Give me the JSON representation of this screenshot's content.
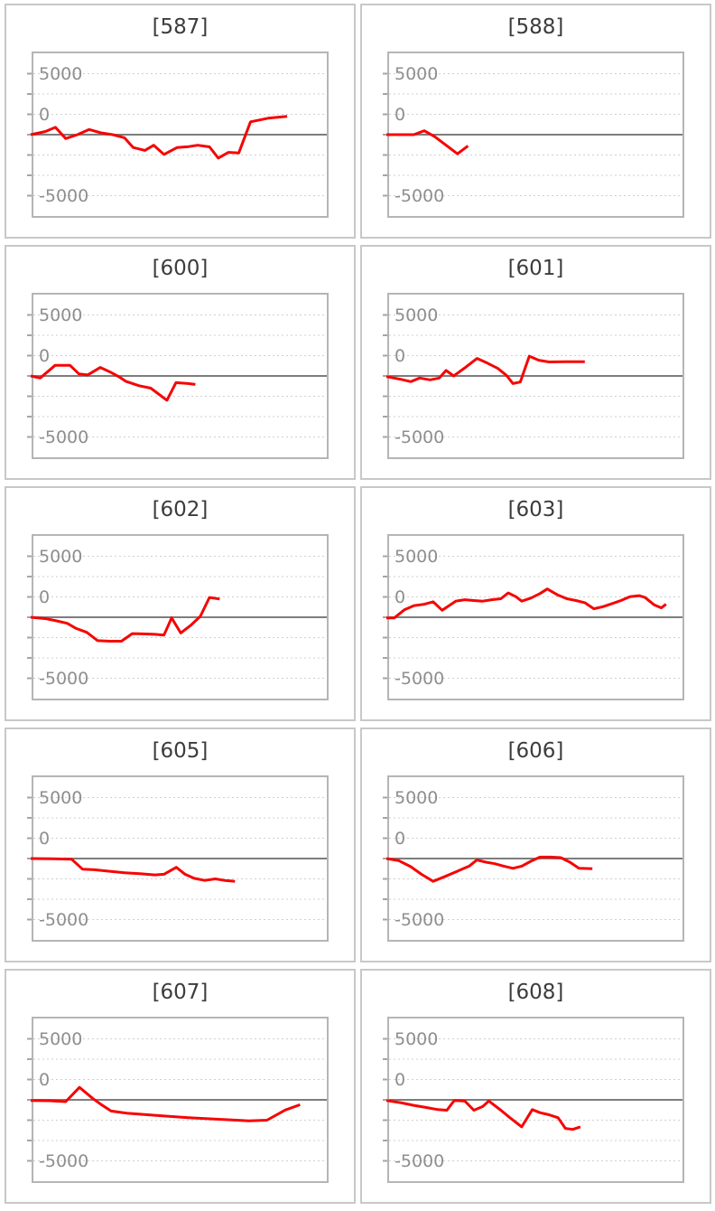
{
  "page": {
    "background": "#ffffff",
    "description_note": ""
  },
  "chart_defaults": {
    "type": "line",
    "grid": "dotted",
    "legend": "none",
    "y_axis": {
      "tick_labels": [
        "5000",
        "0",
        "-5000"
      ],
      "labeled_values": [
        5000,
        0,
        -5000
      ],
      "gridline_values": [
        5000,
        3333,
        1667,
        0,
        -1667,
        -3333,
        -5000
      ],
      "ylim": [
        -6667,
        6667
      ],
      "zero_line": "solid"
    },
    "x_axis": {
      "tick_labels": [],
      "range": [
        0,
        1
      ]
    },
    "colors": {
      "series": "#f60404",
      "zero_line": "#7d7d7d",
      "gridline": "#cfcfcf",
      "tick_mark": "#a5a5a5",
      "plot_border": "#b5b5b5",
      "panel_border": "#c8c8c8",
      "title_text": "#3c3c3c",
      "axis_label_text": "#8e8e8e"
    }
  },
  "chart_data": [
    {
      "title": "[587]",
      "series": [
        {
          "name": "series-red",
          "points": [
            [
              0,
              0
            ],
            [
              0.04,
              250
            ],
            [
              0.075,
              600
            ],
            [
              0.11,
              -320
            ],
            [
              0.15,
              0
            ],
            [
              0.19,
              420
            ],
            [
              0.23,
              150
            ],
            [
              0.27,
              0
            ],
            [
              0.31,
              -250
            ],
            [
              0.34,
              -1050
            ],
            [
              0.38,
              -1290
            ],
            [
              0.41,
              -870
            ],
            [
              0.445,
              -1620
            ],
            [
              0.49,
              -1050
            ],
            [
              0.53,
              -980
            ],
            [
              0.56,
              -870
            ],
            [
              0.6,
              -1000
            ],
            [
              0.63,
              -1920
            ],
            [
              0.665,
              -1450
            ],
            [
              0.7,
              -1500
            ],
            [
              0.74,
              1050
            ],
            [
              0.8,
              1350
            ],
            [
              0.865,
              1500
            ]
          ]
        }
      ]
    },
    {
      "title": "[588]",
      "series": [
        {
          "name": "series-red",
          "points": [
            [
              0,
              0
            ],
            [
              0.084,
              0
            ],
            [
              0.12,
              320
            ],
            [
              0.156,
              -170
            ],
            [
              0.233,
              -1570
            ],
            [
              0.269,
              -920
            ]
          ]
        }
      ]
    },
    {
      "title": "[600]",
      "series": [
        {
          "name": "series-red",
          "points": [
            [
              0,
              0
            ],
            [
              0.023,
              -170
            ],
            [
              0.074,
              870
            ],
            [
              0.125,
              870
            ],
            [
              0.155,
              170
            ],
            [
              0.185,
              80
            ],
            [
              0.228,
              700
            ],
            [
              0.264,
              300
            ],
            [
              0.295,
              -120
            ],
            [
              0.316,
              -450
            ],
            [
              0.36,
              -800
            ],
            [
              0.4,
              -1000
            ],
            [
              0.455,
              -1990
            ],
            [
              0.486,
              -550
            ],
            [
              0.527,
              -620
            ],
            [
              0.552,
              -700
            ]
          ]
        }
      ]
    },
    {
      "title": "[601]",
      "series": [
        {
          "name": "series-red",
          "points": [
            [
              0,
              -50
            ],
            [
              0.038,
              -270
            ],
            [
              0.074,
              -470
            ],
            [
              0.104,
              -170
            ],
            [
              0.14,
              -320
            ],
            [
              0.171,
              -170
            ],
            [
              0.194,
              450
            ],
            [
              0.22,
              0
            ],
            [
              0.26,
              700
            ],
            [
              0.3,
              1440
            ],
            [
              0.335,
              1050
            ],
            [
              0.37,
              620
            ],
            [
              0.4,
              50
            ],
            [
              0.422,
              -620
            ],
            [
              0.447,
              -500
            ],
            [
              0.478,
              1620
            ],
            [
              0.51,
              1290
            ],
            [
              0.545,
              1150
            ],
            [
              0.6,
              1160
            ],
            [
              0.667,
              1170
            ]
          ]
        }
      ]
    },
    {
      "title": "[602]",
      "series": [
        {
          "name": "series-red",
          "points": [
            [
              0,
              0
            ],
            [
              0.043,
              -120
            ],
            [
              0.079,
              -300
            ],
            [
              0.115,
              -500
            ],
            [
              0.146,
              -920
            ],
            [
              0.182,
              -1240
            ],
            [
              0.219,
              -1920
            ],
            [
              0.26,
              -1965
            ],
            [
              0.3,
              -1965
            ],
            [
              0.337,
              -1340
            ],
            [
              0.373,
              -1360
            ],
            [
              0.414,
              -1400
            ],
            [
              0.445,
              -1470
            ],
            [
              0.471,
              -50
            ],
            [
              0.502,
              -1290
            ],
            [
              0.538,
              -620
            ],
            [
              0.569,
              75
            ],
            [
              0.6,
              1620
            ],
            [
              0.635,
              1500
            ]
          ]
        }
      ]
    },
    {
      "title": "[603]",
      "series": [
        {
          "name": "series-red",
          "points": [
            [
              0,
              -50
            ],
            [
              0.018,
              -50
            ],
            [
              0.053,
              620
            ],
            [
              0.084,
              945
            ],
            [
              0.12,
              1070
            ],
            [
              0.15,
              1270
            ],
            [
              0.181,
              570
            ],
            [
              0.227,
              1320
            ],
            [
              0.258,
              1440
            ],
            [
              0.289,
              1370
            ],
            [
              0.319,
              1320
            ],
            [
              0.35,
              1440
            ],
            [
              0.381,
              1520
            ],
            [
              0.406,
              1990
            ],
            [
              0.432,
              1690
            ],
            [
              0.452,
              1320
            ],
            [
              0.483,
              1570
            ],
            [
              0.514,
              1940
            ],
            [
              0.539,
              2315
            ],
            [
              0.575,
              1820
            ],
            [
              0.606,
              1520
            ],
            [
              0.637,
              1370
            ],
            [
              0.667,
              1190
            ],
            [
              0.698,
              700
            ],
            [
              0.729,
              870
            ],
            [
              0.76,
              1120
            ],
            [
              0.79,
              1370
            ],
            [
              0.821,
              1690
            ],
            [
              0.852,
              1770
            ],
            [
              0.872,
              1620
            ],
            [
              0.903,
              1020
            ],
            [
              0.928,
              770
            ],
            [
              0.944,
              1070
            ]
          ]
        }
      ]
    },
    {
      "title": "[605]",
      "series": [
        {
          "name": "series-red",
          "points": [
            [
              0,
              0
            ],
            [
              0.065,
              -25
            ],
            [
              0.13,
              -50
            ],
            [
              0.167,
              -870
            ],
            [
              0.208,
              -920
            ],
            [
              0.26,
              -1045
            ],
            [
              0.311,
              -1170
            ],
            [
              0.363,
              -1240
            ],
            [
              0.414,
              -1340
            ],
            [
              0.445,
              -1290
            ],
            [
              0.487,
              -720
            ],
            [
              0.517,
              -1290
            ],
            [
              0.548,
              -1620
            ],
            [
              0.584,
              -1790
            ],
            [
              0.62,
              -1670
            ],
            [
              0.652,
              -1790
            ],
            [
              0.687,
              -1870
            ]
          ]
        }
      ]
    },
    {
      "title": "[606]",
      "series": [
        {
          "name": "series-red",
          "points": [
            [
              0,
              0
            ],
            [
              0.033,
              -170
            ],
            [
              0.074,
              -670
            ],
            [
              0.11,
              -1290
            ],
            [
              0.15,
              -1870
            ],
            [
              0.191,
              -1470
            ],
            [
              0.232,
              -1045
            ],
            [
              0.273,
              -620
            ],
            [
              0.299,
              -120
            ],
            [
              0.33,
              -300
            ],
            [
              0.36,
              -420
            ],
            [
              0.391,
              -620
            ],
            [
              0.422,
              -800
            ],
            [
              0.452,
              -620
            ],
            [
              0.483,
              -220
            ],
            [
              0.514,
              120
            ],
            [
              0.55,
              120
            ],
            [
              0.585,
              75
            ],
            [
              0.616,
              -300
            ],
            [
              0.647,
              -800
            ],
            [
              0.693,
              -840
            ]
          ]
        }
      ]
    },
    {
      "title": "[607]",
      "series": [
        {
          "name": "series-red",
          "points": [
            [
              0,
              -50
            ],
            [
              0.055,
              -75
            ],
            [
              0.11,
              -150
            ],
            [
              0.157,
              1020
            ],
            [
              0.203,
              100
            ],
            [
              0.229,
              -350
            ],
            [
              0.265,
              -920
            ],
            [
              0.317,
              -1090
            ],
            [
              0.425,
              -1290
            ],
            [
              0.528,
              -1470
            ],
            [
              0.631,
              -1590
            ],
            [
              0.693,
              -1670
            ],
            [
              0.734,
              -1720
            ],
            [
              0.796,
              -1670
            ],
            [
              0.858,
              -840
            ],
            [
              0.909,
              -400
            ]
          ]
        }
      ]
    },
    {
      "title": "[608]",
      "series": [
        {
          "name": "series-red",
          "points": [
            [
              0,
              -50
            ],
            [
              0.043,
              -250
            ],
            [
              0.084,
              -450
            ],
            [
              0.125,
              -620
            ],
            [
              0.166,
              -800
            ],
            [
              0.197,
              -850
            ],
            [
              0.222,
              -50
            ],
            [
              0.258,
              -100
            ],
            [
              0.289,
              -850
            ],
            [
              0.319,
              -550
            ],
            [
              0.34,
              -100
            ],
            [
              0.381,
              -850
            ],
            [
              0.412,
              -1470
            ],
            [
              0.452,
              -2215
            ],
            [
              0.488,
              -800
            ],
            [
              0.514,
              -1050
            ],
            [
              0.545,
              -1220
            ],
            [
              0.576,
              -1470
            ],
            [
              0.601,
              -2340
            ],
            [
              0.626,
              -2420
            ],
            [
              0.652,
              -2215
            ]
          ]
        }
      ]
    }
  ]
}
